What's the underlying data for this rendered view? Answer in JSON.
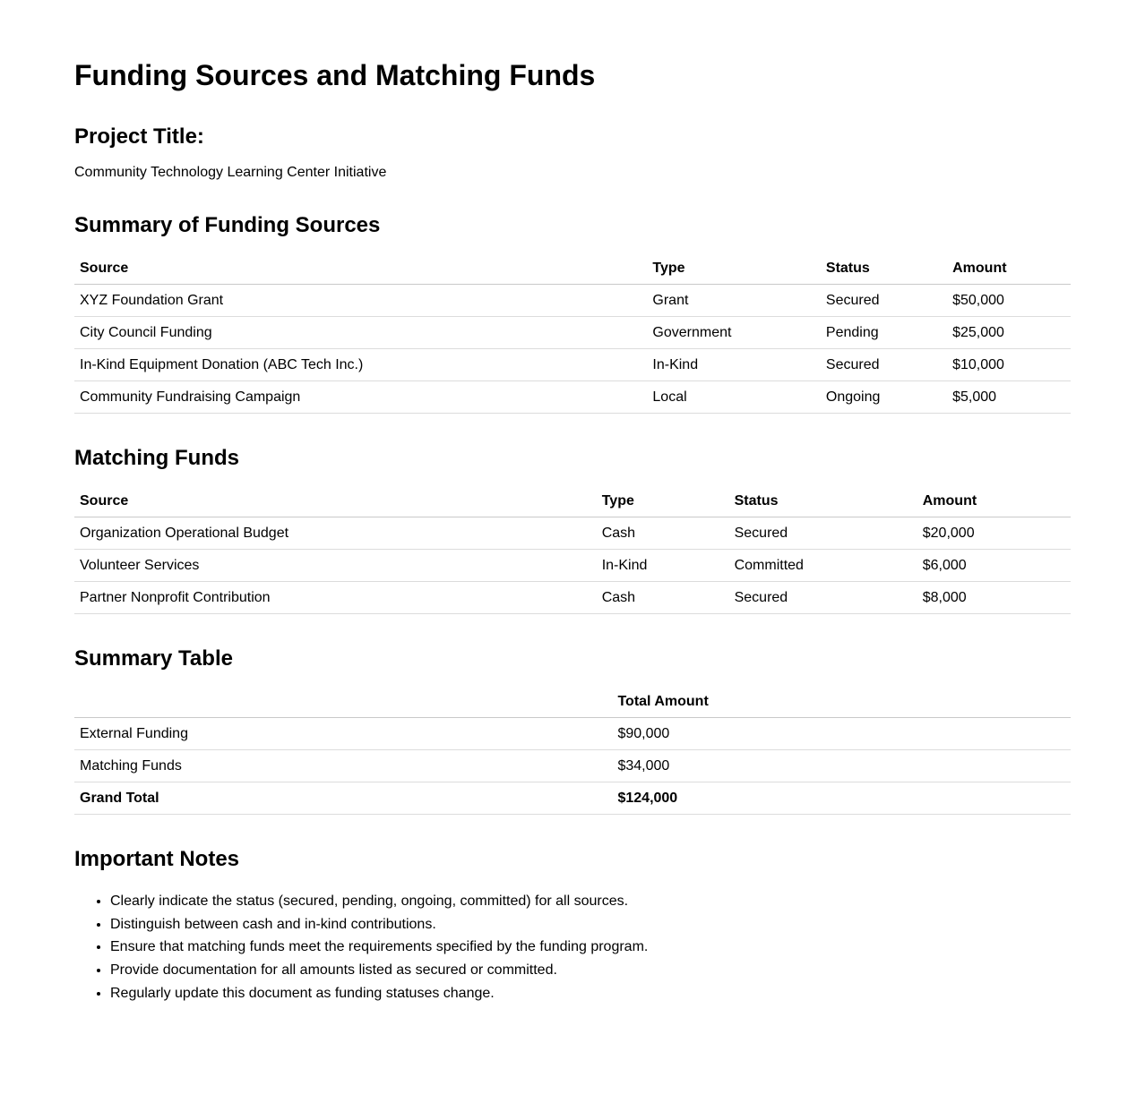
{
  "page": {
    "title": "Funding Sources and Matching Funds"
  },
  "project": {
    "heading": "Project Title:",
    "value": "Community Technology Learning Center Initiative"
  },
  "funding_sources": {
    "heading": "Summary of Funding Sources",
    "columns": [
      "Source",
      "Type",
      "Status",
      "Amount"
    ],
    "rows": [
      [
        "XYZ Foundation Grant",
        "Grant",
        "Secured",
        "$50,000"
      ],
      [
        "City Council Funding",
        "Government",
        "Pending",
        "$25,000"
      ],
      [
        "In-Kind Equipment Donation (ABC Tech Inc.)",
        "In-Kind",
        "Secured",
        "$10,000"
      ],
      [
        "Community Fundraising Campaign",
        "Local",
        "Ongoing",
        "$5,000"
      ]
    ]
  },
  "matching_funds": {
    "heading": "Matching Funds",
    "columns": [
      "Source",
      "Type",
      "Status",
      "Amount"
    ],
    "rows": [
      [
        "Organization Operational Budget",
        "Cash",
        "Secured",
        "$20,000"
      ],
      [
        "Volunteer Services",
        "In-Kind",
        "Committed",
        "$6,000"
      ],
      [
        "Partner Nonprofit Contribution",
        "Cash",
        "Secured",
        "$8,000"
      ]
    ]
  },
  "summary_table": {
    "heading": "Summary Table",
    "columns": [
      "",
      "Total Amount"
    ],
    "rows": [
      {
        "cells": [
          "External Funding",
          "$90,000"
        ],
        "bold": false
      },
      {
        "cells": [
          "Matching Funds",
          "$34,000"
        ],
        "bold": false
      },
      {
        "cells": [
          "Grand Total",
          "$124,000"
        ],
        "bold": true
      }
    ]
  },
  "notes": {
    "heading": "Important Notes",
    "items": [
      "Clearly indicate the status (secured, pending, ongoing, committed) for all sources.",
      "Distinguish between cash and in-kind contributions.",
      "Ensure that matching funds meet the requirements specified by the funding program.",
      "Provide documentation for all amounts listed as secured or committed.",
      "Regularly update this document as funding statuses change."
    ]
  },
  "colors": {
    "text": "#000000",
    "background": "#ffffff",
    "header_border": "#c9c9c9",
    "row_border": "#dcdcdc"
  }
}
